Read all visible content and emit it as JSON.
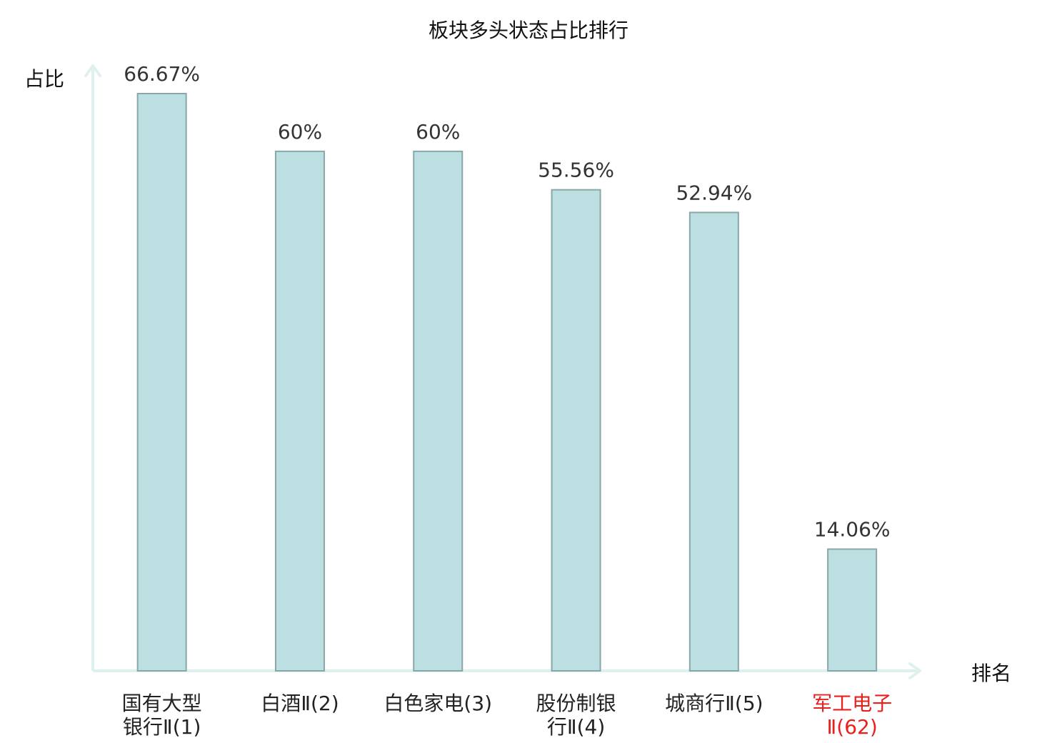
{
  "chart_data": {
    "type": "bar",
    "title": "板块多头状态占比排行",
    "xlabel": "排名",
    "ylabel": "占比",
    "categories": [
      [
        "国有大型",
        "银行Ⅱ(1)"
      ],
      [
        "白酒Ⅱ(2)"
      ],
      [
        "白色家电(3)"
      ],
      [
        "股份制银",
        "行Ⅱ(4)"
      ],
      [
        "城商行Ⅱ(5)"
      ],
      [
        "军工电子",
        "Ⅱ(62)"
      ]
    ],
    "values": [
      66.67,
      60,
      60,
      55.56,
      52.94,
      14.06
    ],
    "value_labels": [
      "66.67%",
      "60%",
      "60%",
      "55.56%",
      "52.94%",
      "14.06%"
    ],
    "highlight_index": 5,
    "ylim": [
      0,
      70
    ],
    "grid": false,
    "colors": {
      "bar_fill": "#bce0e2",
      "bar_stroke": "#8aa7a8",
      "axis": "#dff1ee",
      "label": "#222222",
      "highlight_label": "#e8201e",
      "value_label": "#333333"
    }
  }
}
